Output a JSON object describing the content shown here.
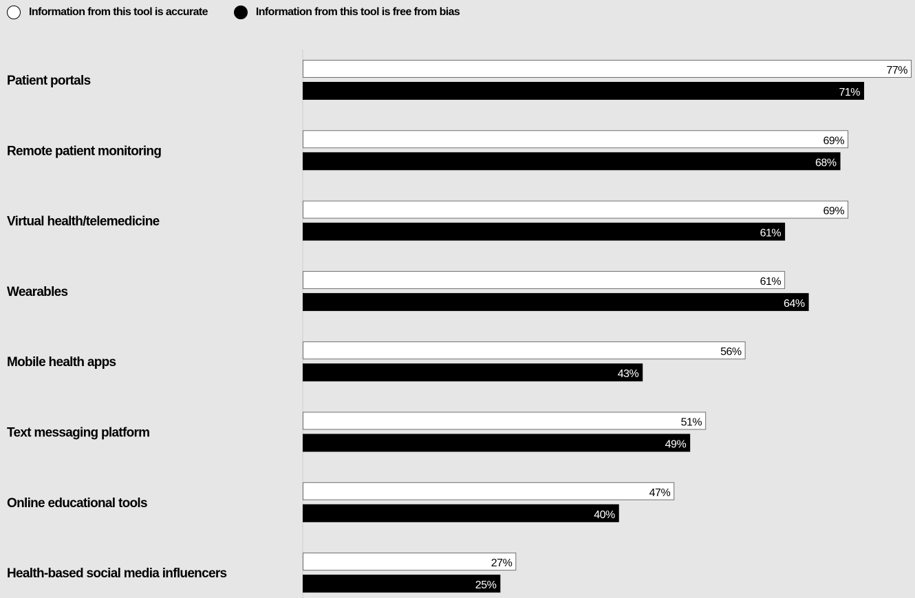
{
  "chart_data": {
    "type": "bar",
    "orientation": "horizontal",
    "categories": [
      "Patient portals",
      "Remote patient monitoring",
      "Virtual health/telemedicine",
      "Wearables",
      "Mobile health apps",
      "Text messaging platform",
      "Online educational tools",
      "Health-based social media influencers"
    ],
    "series": [
      {
        "name": "Information from this tool is accurate",
        "color": "#ffffff",
        "values": [
          77,
          69,
          69,
          61,
          56,
          51,
          47,
          27
        ],
        "labels": [
          "77%",
          "69%",
          "69%",
          "61%",
          "56%",
          "51%",
          "47%",
          "27%"
        ]
      },
      {
        "name": "Information from this tool is free from bias",
        "color": "#000000",
        "values": [
          71,
          68,
          61,
          64,
          43,
          49,
          40,
          25
        ],
        "labels": [
          "71%",
          "68%",
          "61%",
          "64%",
          "43%",
          "49%",
          "40%",
          "25%"
        ]
      }
    ],
    "xlim": [
      0,
      77
    ],
    "grid": false,
    "legend_position": "top-left"
  }
}
